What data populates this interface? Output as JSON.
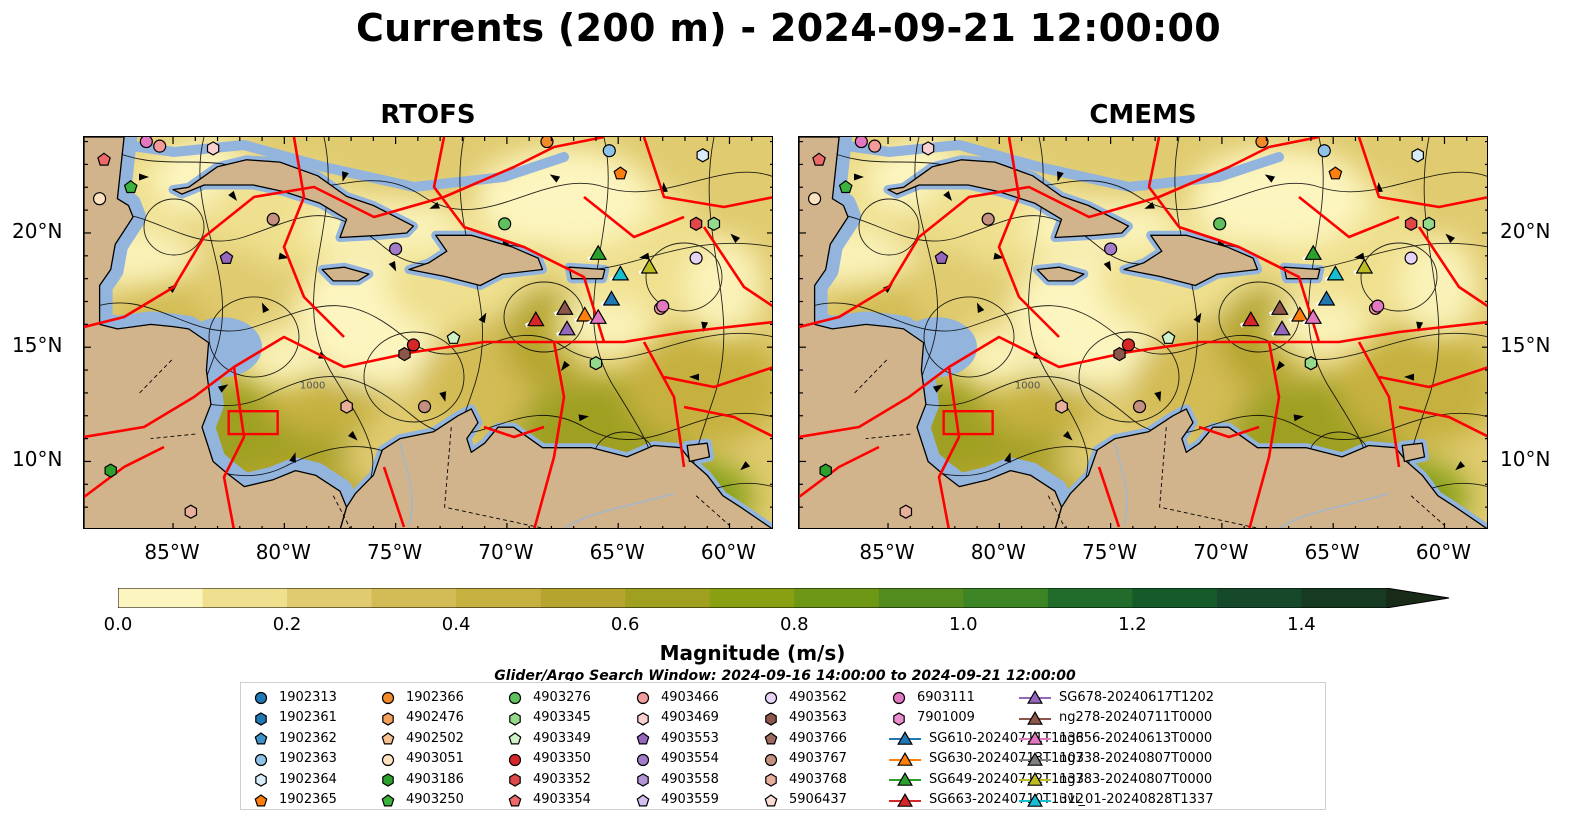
{
  "title": "Currents (200 m) - 2024-09-21 12:00:00",
  "panels": [
    {
      "title": "RTOFS"
    },
    {
      "title": "CMEMS"
    }
  ],
  "map_extent": {
    "lon_min": -89.0,
    "lon_max": -58.0,
    "lat_min": 7.0,
    "lat_max": 24.2
  },
  "lat_ticks": [
    "20°N",
    "15°N",
    "10°N"
  ],
  "lon_ticks": [
    "85°W",
    "80°W",
    "75°W",
    "70°W",
    "65°W",
    "60°W"
  ],
  "contour_labels": [
    "1000"
  ],
  "colorbar": {
    "label": "Magnitude (m/s)",
    "ticks": [
      "0.0",
      "0.2",
      "0.4",
      "0.6",
      "0.8",
      "1.0",
      "1.2",
      "1.4"
    ],
    "min": 0.0,
    "max": 1.5,
    "extend": "max",
    "colors": [
      "#fcf5bf",
      "#efe08f",
      "#e0cb70",
      "#d3bc55",
      "#c6b140",
      "#b5a52f",
      "#9fa020",
      "#88a012",
      "#6f9716",
      "#538c1e",
      "#3d8424",
      "#226c2b",
      "#175a2a",
      "#15492a",
      "#163a22",
      "#182a18"
    ]
  },
  "colors": {
    "land": "#d2b48c",
    "shelf": "#92b4dd",
    "eez_lines": "#ff0000",
    "streamlines": "#000000",
    "rivers": "#9fb7cf"
  },
  "subtitle": "Glider/Argo Search Window: 2024-09-16 14:00:00 to 2024-09-21 12:00:00",
  "legend": [
    {
      "label": "1902313",
      "marker": "circle",
      "color": "#1f77b4"
    },
    {
      "label": "1902361",
      "marker": "hexagon",
      "color": "#1f77b4"
    },
    {
      "label": "1902362",
      "marker": "pentagon",
      "color": "#3c92c9"
    },
    {
      "label": "1902363",
      "marker": "circle",
      "color": "#8fc2e8"
    },
    {
      "label": "1902364",
      "marker": "hexagon",
      "color": "#d9ecfa"
    },
    {
      "label": "1902365",
      "marker": "pentagon",
      "color": "#ff7f0e"
    },
    {
      "label": "1902366",
      "marker": "circle",
      "color": "#f08a2a"
    },
    {
      "label": "4902476",
      "marker": "hexagon",
      "color": "#f5a05a"
    },
    {
      "label": "4902502",
      "marker": "pentagon",
      "color": "#f8c08c"
    },
    {
      "label": "4903051",
      "marker": "circle",
      "color": "#fde2c2"
    },
    {
      "label": "4903186",
      "marker": "hexagon",
      "color": "#2ca02c"
    },
    {
      "label": "4903250",
      "marker": "pentagon",
      "color": "#3cb33c"
    },
    {
      "label": "4903276",
      "marker": "circle",
      "color": "#5ec15e"
    },
    {
      "label": "4903345",
      "marker": "hexagon",
      "color": "#95d98d"
    },
    {
      "label": "4903349",
      "marker": "pentagon",
      "color": "#d0f0c8"
    },
    {
      "label": "4903350",
      "marker": "circle",
      "color": "#d62728"
    },
    {
      "label": "4903352",
      "marker": "hexagon",
      "color": "#e04848"
    },
    {
      "label": "4903354",
      "marker": "pentagon",
      "color": "#ee6a6a"
    },
    {
      "label": "4903466",
      "marker": "circle",
      "color": "#f39a9a"
    },
    {
      "label": "4903469",
      "marker": "hexagon",
      "color": "#fbd0d0"
    },
    {
      "label": "4903553",
      "marker": "pentagon",
      "color": "#9467bd"
    },
    {
      "label": "4903554",
      "marker": "circle",
      "color": "#a27cc9"
    },
    {
      "label": "4903558",
      "marker": "hexagon",
      "color": "#b293d5"
    },
    {
      "label": "4903559",
      "marker": "pentagon",
      "color": "#d4c0ee"
    },
    {
      "label": "4903562",
      "marker": "circle",
      "color": "#e6d3f7"
    },
    {
      "label": "4903563",
      "marker": "hexagon",
      "color": "#8c564b"
    },
    {
      "label": "4903766",
      "marker": "pentagon",
      "color": "#9c6a5e"
    },
    {
      "label": "4903767",
      "marker": "circle",
      "color": "#c4907f"
    },
    {
      "label": "4903768",
      "marker": "hexagon",
      "color": "#e8b09b"
    },
    {
      "label": "5906437",
      "marker": "pentagon",
      "color": "#fbdcd0"
    },
    {
      "label": "6903111",
      "marker": "circle",
      "color": "#e377c2"
    },
    {
      "label": "7901009",
      "marker": "hexagon",
      "color": "#ea8ed0"
    },
    {
      "label": "SG610-20240711T1133",
      "marker": "triangle",
      "color": "#1f77b4"
    },
    {
      "label": "SG630-20240713T1103",
      "marker": "triangle",
      "color": "#ff7f0e"
    },
    {
      "label": "SG649-20240712T1133",
      "marker": "triangle",
      "color": "#2ca02c"
    },
    {
      "label": "SG663-20240710T1312",
      "marker": "triangle",
      "color": "#d62728"
    },
    {
      "label": "SG678-20240617T1202",
      "marker": "triangle",
      "color": "#9467bd"
    },
    {
      "label": "ng278-20240711T0000",
      "marker": "triangle",
      "color": "#8c564b"
    },
    {
      "label": "ng656-20240613T0000",
      "marker": "triangle",
      "color": "#e377c2"
    },
    {
      "label": "ng738-20240807T0000",
      "marker": "triangle",
      "color": "#7f7f7f"
    },
    {
      "label": "ng783-20240807T0000",
      "marker": "triangle",
      "color": "#bcbd22"
    },
    {
      "label": "uvi_01-20240828T1337",
      "marker": "triangle",
      "color": "#17becf"
    }
  ],
  "observations": [
    {
      "id": "1902363",
      "lon": -65.4,
      "lat": 23.6
    },
    {
      "id": "1902364",
      "lon": -61.2,
      "lat": 23.4
    },
    {
      "id": "1902365",
      "lon": -64.9,
      "lat": 22.6
    },
    {
      "id": "1902366",
      "lon": -68.2,
      "lat": 24.0
    },
    {
      "id": "4903051",
      "lon": -88.3,
      "lat": 21.5
    },
    {
      "id": "4903186",
      "lon": -87.8,
      "lat": 9.6
    },
    {
      "id": "4903250",
      "lon": -86.9,
      "lat": 22.0
    },
    {
      "id": "4903276",
      "lon": -70.1,
      "lat": 20.4
    },
    {
      "id": "4903345",
      "lon": -66.0,
      "lat": 14.3
    },
    {
      "id": "4903345",
      "lon": -60.7,
      "lat": 20.4
    },
    {
      "id": "4903349",
      "lon": -72.4,
      "lat": 15.4
    },
    {
      "id": "4903350",
      "lon": -74.2,
      "lat": 15.1
    },
    {
      "id": "4903352",
      "lon": -61.5,
      "lat": 20.4
    },
    {
      "id": "4903354",
      "lon": -88.1,
      "lat": 23.2
    },
    {
      "id": "4903466",
      "lon": -85.6,
      "lat": 23.8
    },
    {
      "id": "4903466",
      "lon": -63.1,
      "lat": 16.7
    },
    {
      "id": "4903469",
      "lon": -83.2,
      "lat": 23.7
    },
    {
      "id": "4903553",
      "lon": -82.6,
      "lat": 18.9
    },
    {
      "id": "4903554",
      "lon": -75.0,
      "lat": 19.3
    },
    {
      "id": "4903562",
      "lon": -61.5,
      "lat": 18.9
    },
    {
      "id": "4903563",
      "lon": -74.6,
      "lat": 14.7
    },
    {
      "id": "4903767",
      "lon": -80.5,
      "lat": 20.6
    },
    {
      "id": "4903767",
      "lon": -73.7,
      "lat": 12.4
    },
    {
      "id": "4903768",
      "lon": -77.2,
      "lat": 12.4
    },
    {
      "id": "4903768",
      "lon": -84.2,
      "lat": 7.8
    },
    {
      "id": "6903111",
      "lon": -86.2,
      "lat": 24.0
    },
    {
      "id": "6903111",
      "lon": -63.0,
      "lat": 16.8
    }
  ],
  "glider_positions": [
    {
      "id": "SG649-20240712T1133",
      "lon": -65.9,
      "lat": 19.1
    },
    {
      "id": "uvi_01-20240828T1337",
      "lon": -64.9,
      "lat": 18.2
    },
    {
      "id": "ng783-20240807T0000",
      "lon": -63.6,
      "lat": 18.5
    },
    {
      "id": "SG610-20240711T1133",
      "lon": -65.3,
      "lat": 17.1
    },
    {
      "id": "ng278-20240711T0000",
      "lon": -67.4,
      "lat": 16.7
    },
    {
      "id": "SG663-20240710T1312",
      "lon": -68.7,
      "lat": 16.2
    },
    {
      "id": "SG630-20240713T1103",
      "lon": -66.5,
      "lat": 16.4
    },
    {
      "id": "ng656-20240613T0000",
      "lon": -65.9,
      "lat": 16.3
    },
    {
      "id": "SG678-20240617T1202",
      "lon": -67.3,
      "lat": 15.8
    }
  ]
}
